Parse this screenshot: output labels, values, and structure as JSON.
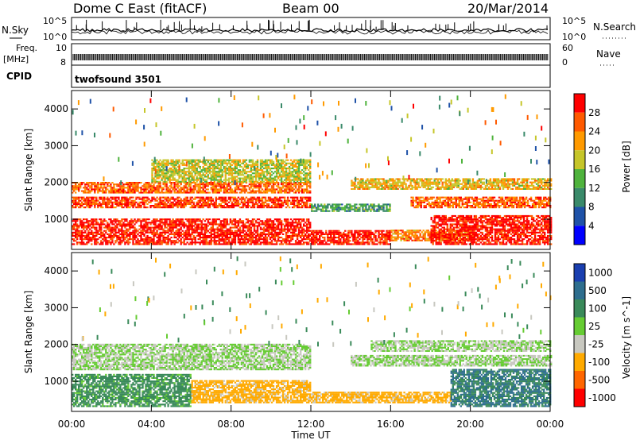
{
  "header": {
    "station": "Dome C East (fitACF)",
    "beam": "Beam 00",
    "date": "20/Mar/2014"
  },
  "top_panels": {
    "nsky_label": "N.Sky",
    "nsky_ticks": [
      "10^5",
      "10^0"
    ],
    "nsearch_label": "N.Search",
    "freq_label": "Freq.",
    "freq_unit": "[MHz]",
    "freq_ticks": [
      "10",
      "8"
    ],
    "nave_label": "Nave",
    "nave_ticks": [
      "60",
      "0"
    ],
    "cpid_label": "CPID",
    "cpid_value": "twofsound 3501"
  },
  "axes": {
    "ylabel": "Slant Range [km]",
    "xlabel": "Time UT",
    "ytick_labels": [
      "1000",
      "2000",
      "3000",
      "4000"
    ],
    "xtick_labels": [
      "00:00",
      "04:00",
      "08:00",
      "12:00",
      "16:00",
      "20:00",
      "00:00"
    ]
  },
  "power_scale": {
    "label": "Power [dB]",
    "ticks": [
      "4",
      "8",
      "12",
      "16",
      "20",
      "24",
      "28"
    ],
    "colors": [
      "#0000ff",
      "#1f52a8",
      "#3a8a6a",
      "#4fb33d",
      "#c6c62a",
      "#ff9a00",
      "#ff5a00",
      "#ff0000"
    ]
  },
  "velocity_scale": {
    "label": "Velocity [m s^-1]",
    "ticks": [
      "1000",
      "500",
      "100",
      "25",
      "-25",
      "-100",
      "-500",
      "-1000"
    ],
    "colors": [
      "#1a3fb0",
      "#2e6e8e",
      "#3a8a5a",
      "#66cc33",
      "#c8c8c0",
      "#ffaa00",
      "#ff6600",
      "#ff0000"
    ]
  },
  "chart_data": [
    {
      "type": "heatmap",
      "name": "power",
      "xlabel": "Time UT",
      "ylabel": "Slant Range [km]",
      "xlim": [
        0,
        24
      ],
      "ylim": [
        180,
        4500
      ],
      "colorbar": "Power [dB]",
      "clim": [
        0,
        32
      ],
      "bands": [
        {
          "t0": 0,
          "t1": 12,
          "r0": 300,
          "r1": 1000,
          "value": 30
        },
        {
          "t0": 0,
          "t1": 12,
          "r0": 1300,
          "r1": 1600,
          "value": 28
        },
        {
          "t0": 0,
          "t1": 12,
          "r0": 1700,
          "r1": 2000,
          "value": 25
        },
        {
          "t0": 4,
          "t1": 12,
          "r0": 2000,
          "r1": 2600,
          "value": 18
        },
        {
          "t0": 12,
          "t1": 16,
          "r0": 300,
          "r1": 700,
          "value": 30
        },
        {
          "t0": 12,
          "t1": 16,
          "r0": 1200,
          "r1": 1400,
          "value": 12
        },
        {
          "t0": 16,
          "t1": 20,
          "r0": 400,
          "r1": 700,
          "value": 24
        },
        {
          "t0": 18,
          "t1": 24,
          "r0": 300,
          "r1": 1100,
          "value": 30
        },
        {
          "t0": 17,
          "t1": 24,
          "r0": 1300,
          "r1": 1600,
          "value": 26
        },
        {
          "t0": 14,
          "t1": 24,
          "r0": 1800,
          "r1": 2100,
          "value": 20
        }
      ]
    },
    {
      "type": "heatmap",
      "name": "velocity",
      "xlabel": "Time UT",
      "ylabel": "Slant Range [km]",
      "xlim": [
        0,
        24
      ],
      "ylim": [
        180,
        4500
      ],
      "colorbar": "Velocity [m s^-1]",
      "bands": [
        {
          "t0": 0,
          "t1": 6,
          "r0": 300,
          "r1": 1200,
          "value": 100
        },
        {
          "t0": 6,
          "t1": 12,
          "r0": 400,
          "r1": 1000,
          "value": -100
        },
        {
          "t0": 0,
          "t1": 12,
          "r0": 1300,
          "r1": 2000,
          "value": 0
        },
        {
          "t0": 12,
          "t1": 19,
          "r0": 400,
          "r1": 700,
          "value": -100
        },
        {
          "t0": 19,
          "t1": 24,
          "r0": 300,
          "r1": 1300,
          "value": 300
        },
        {
          "t0": 14,
          "t1": 24,
          "r0": 1400,
          "r1": 1700,
          "value": 0
        },
        {
          "t0": 15,
          "t1": 24,
          "r0": 1800,
          "r1": 2100,
          "value": 0
        }
      ]
    }
  ]
}
